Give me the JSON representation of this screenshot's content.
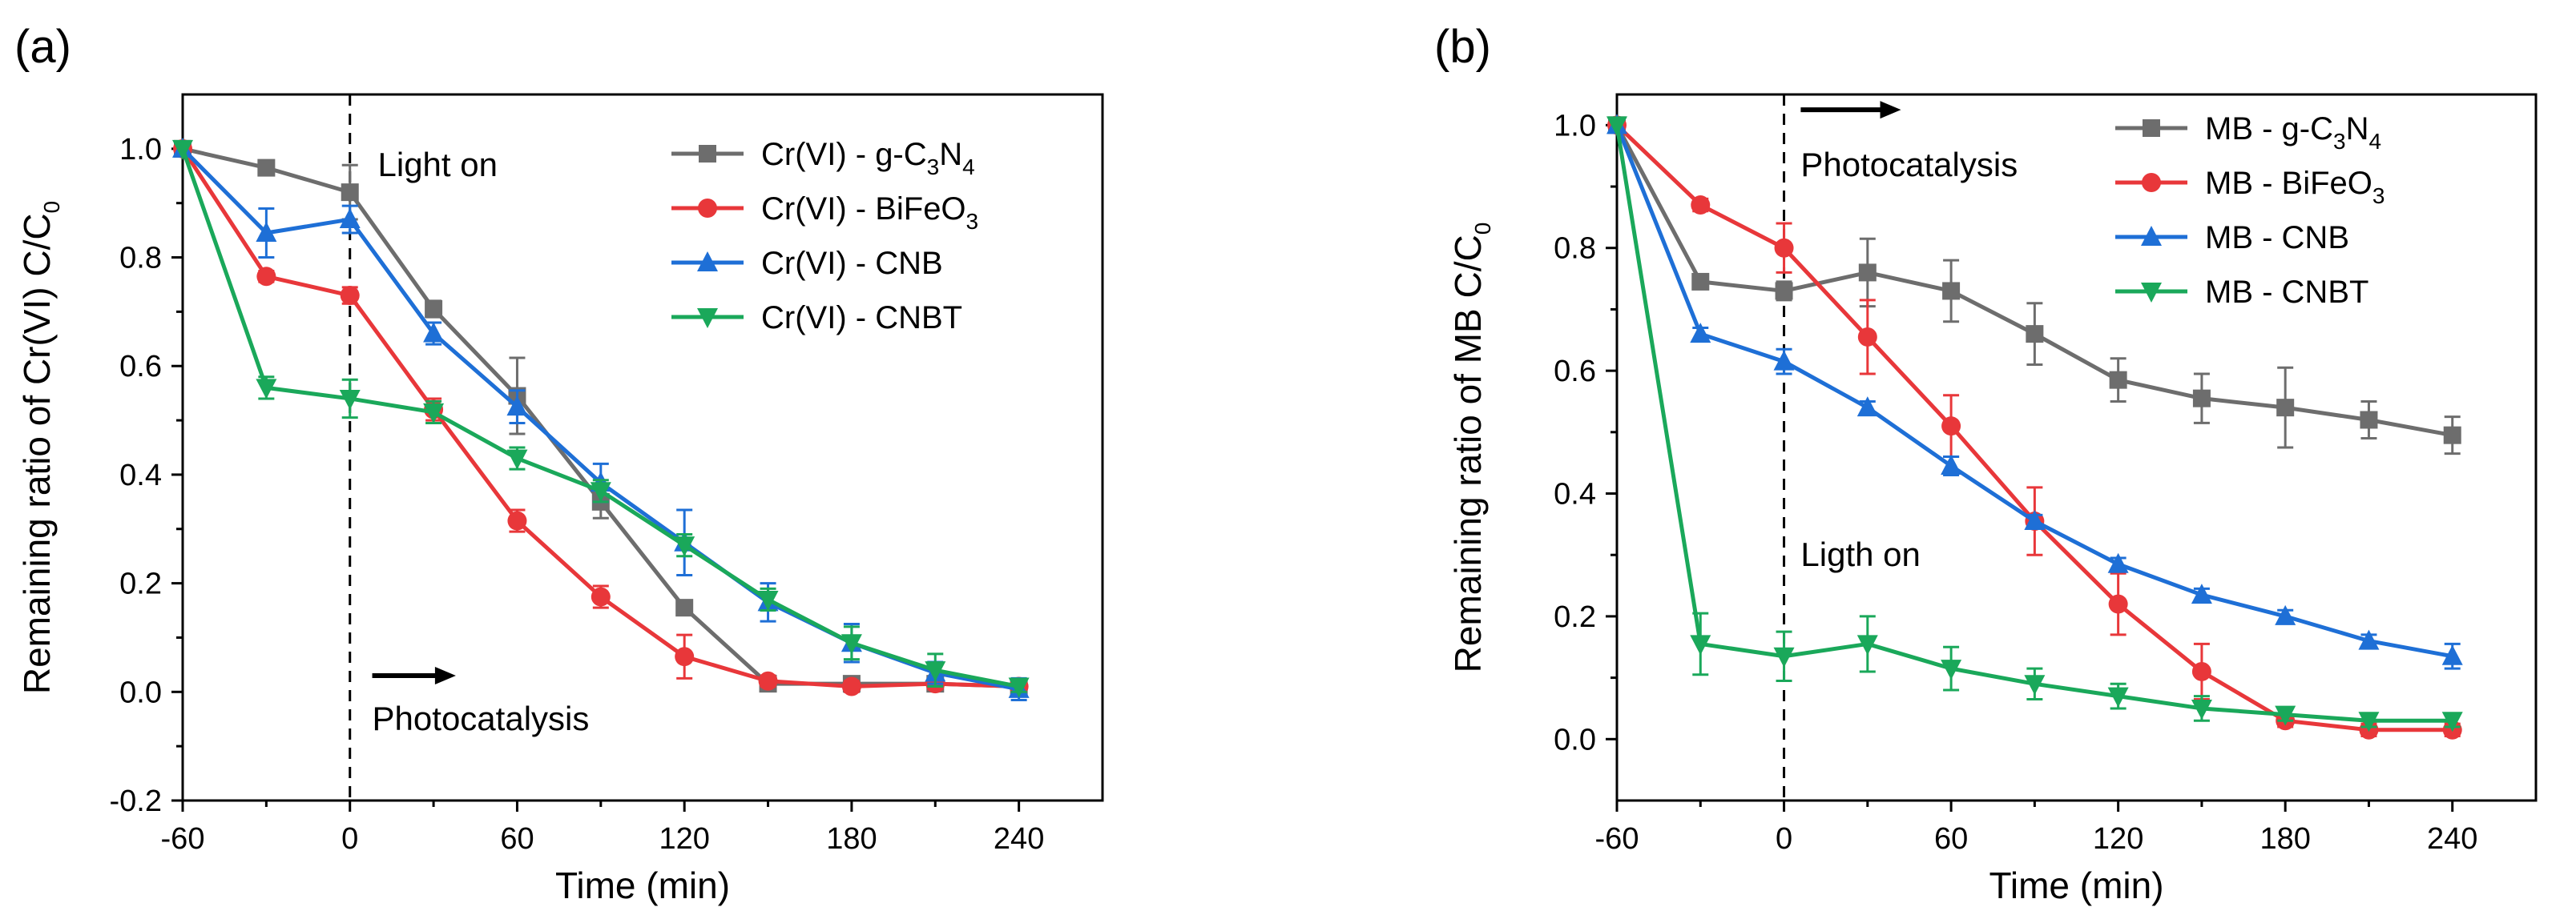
{
  "chart_data": [
    {
      "type": "line",
      "panel_label": "(a)",
      "xlabel": "Time (min)",
      "ylabel": "Remaining ratio of Cr(VI) C/C",
      "ylabel_sub": "0",
      "xlim": [
        -60,
        270
      ],
      "ylim": [
        -0.2,
        1.1
      ],
      "xticks": [
        -60,
        0,
        60,
        120,
        180,
        240
      ],
      "xtick_labels": [
        "-60",
        "0",
        "60",
        "120",
        "180",
        "240"
      ],
      "yticks": [
        -0.2,
        0.0,
        0.2,
        0.4,
        0.6,
        0.8,
        1.0
      ],
      "ytick_labels": [
        "-0.2",
        "0.0",
        "0.2",
        "0.4",
        "0.6",
        "0.8",
        "1.0"
      ],
      "grid": false,
      "legend_position": "top-right",
      "annotations": [
        {
          "text": "Light on",
          "x": 10,
          "y": 0.97
        },
        {
          "text": "Photocatalysis",
          "x": 8,
          "y": -0.05
        },
        {
          "arrow": true,
          "x0": 8,
          "x1": 38,
          "y": 0.03
        }
      ],
      "vline": 0,
      "x": [
        -60,
        -30,
        0,
        30,
        60,
        90,
        120,
        150,
        180,
        210,
        240
      ],
      "series": [
        {
          "name": "Cr(VI) - g-C",
          "sub1": "3",
          "mid": "N",
          "sub2": "4",
          "color": "#6d6d6d",
          "marker": "square",
          "values": [
            1.0,
            0.965,
            0.92,
            0.705,
            0.545,
            0.35,
            0.155,
            0.015,
            0.015,
            0.015,
            0.01
          ],
          "errors": [
            0,
            0.01,
            0.05,
            0.015,
            0.07,
            0.03,
            0.01,
            0.01,
            0.01,
            0.01,
            0.01
          ]
        },
        {
          "name": "Cr(VI) - BiFeO",
          "sub1": "3",
          "color": "#e8373a",
          "marker": "circle",
          "values": [
            1.0,
            0.765,
            0.73,
            0.52,
            0.315,
            0.175,
            0.065,
            0.02,
            0.01,
            0.015,
            0.01
          ],
          "errors": [
            0,
            0.01,
            0.015,
            0.02,
            0.02,
            0.02,
            0.04,
            0.01,
            0.01,
            0.01,
            0.01
          ]
        },
        {
          "name": "Cr(VI) - CNB",
          "color": "#1e6fd6",
          "marker": "triangle-up",
          "values": [
            1.0,
            0.845,
            0.87,
            0.66,
            0.525,
            0.385,
            0.275,
            0.165,
            0.09,
            0.035,
            0.005
          ],
          "errors": [
            0,
            0.045,
            0.025,
            0.02,
            0.03,
            0.035,
            0.06,
            0.035,
            0.035,
            0.02,
            0.02
          ]
        },
        {
          "name": "Cr(VI) - CNBT",
          "color": "#1aa85a",
          "marker": "triangle-down",
          "values": [
            1.0,
            0.56,
            0.54,
            0.515,
            0.43,
            0.37,
            0.27,
            0.17,
            0.09,
            0.04,
            0.01
          ],
          "errors": [
            0,
            0.02,
            0.035,
            0.02,
            0.02,
            0.02,
            0.02,
            0.02,
            0.03,
            0.03,
            0.01
          ]
        }
      ]
    },
    {
      "type": "line",
      "panel_label": "(b)",
      "xlabel": "Time (min)",
      "ylabel": "Remaining ratio of MB C/C",
      "ylabel_sub": "0",
      "xlim": [
        -60,
        270
      ],
      "ylim": [
        -0.1,
        1.05
      ],
      "xticks": [
        -60,
        0,
        60,
        120,
        180,
        240
      ],
      "xtick_labels": [
        "-60",
        "0",
        "60",
        "120",
        "180",
        "240"
      ],
      "yticks": [
        0.0,
        0.2,
        0.4,
        0.6,
        0.8,
        1.0
      ],
      "ytick_labels": [
        "0.0",
        "0.2",
        "0.4",
        "0.6",
        "0.8",
        "1.0"
      ],
      "grid": false,
      "legend_position": "top-right",
      "annotations": [
        {
          "text": "Photocatalysis",
          "x": 6,
          "y": 0.935
        },
        {
          "text": "Ligth on",
          "x": 6,
          "y": 0.3
        },
        {
          "arrow": true,
          "x0": 6,
          "x1": 42,
          "y": 1.025
        }
      ],
      "vline": 0,
      "x": [
        -60,
        -30,
        0,
        30,
        60,
        90,
        120,
        150,
        180,
        210,
        240
      ],
      "series": [
        {
          "name": "MB - g-C",
          "sub1": "3",
          "mid": "N",
          "sub2": "4",
          "color": "#6d6d6d",
          "marker": "square",
          "values": [
            1.0,
            0.745,
            0.73,
            0.76,
            0.73,
            0.66,
            0.585,
            0.555,
            0.54,
            0.52,
            0.495
          ],
          "errors": [
            0,
            0.01,
            0.015,
            0.055,
            0.05,
            0.05,
            0.035,
            0.04,
            0.065,
            0.03,
            0.03
          ]
        },
        {
          "name": "MB - BiFeO",
          "sub1": "3",
          "color": "#e8373a",
          "marker": "circle",
          "values": [
            1.0,
            0.87,
            0.8,
            0.655,
            0.51,
            0.355,
            0.22,
            0.11,
            0.03,
            0.015,
            0.015
          ],
          "errors": [
            0,
            0.01,
            0.04,
            0.06,
            0.05,
            0.055,
            0.05,
            0.045,
            0.01,
            0.01,
            0.01
          ]
        },
        {
          "name": "MB - CNB",
          "color": "#1e6fd6",
          "marker": "triangle-up",
          "values": [
            1.0,
            0.66,
            0.615,
            0.54,
            0.445,
            0.355,
            0.285,
            0.235,
            0.2,
            0.16,
            0.135
          ],
          "errors": [
            0,
            0.01,
            0.02,
            0.01,
            0.015,
            0.01,
            0.01,
            0.01,
            0.01,
            0.01,
            0.02
          ]
        },
        {
          "name": "MB - CNBT",
          "color": "#1aa85a",
          "marker": "triangle-down",
          "values": [
            1.0,
            0.155,
            0.135,
            0.155,
            0.115,
            0.09,
            0.07,
            0.05,
            0.04,
            0.03,
            0.03
          ],
          "errors": [
            0,
            0.05,
            0.04,
            0.045,
            0.035,
            0.025,
            0.02,
            0.02,
            0.01,
            0.01,
            0.01
          ]
        }
      ]
    }
  ]
}
